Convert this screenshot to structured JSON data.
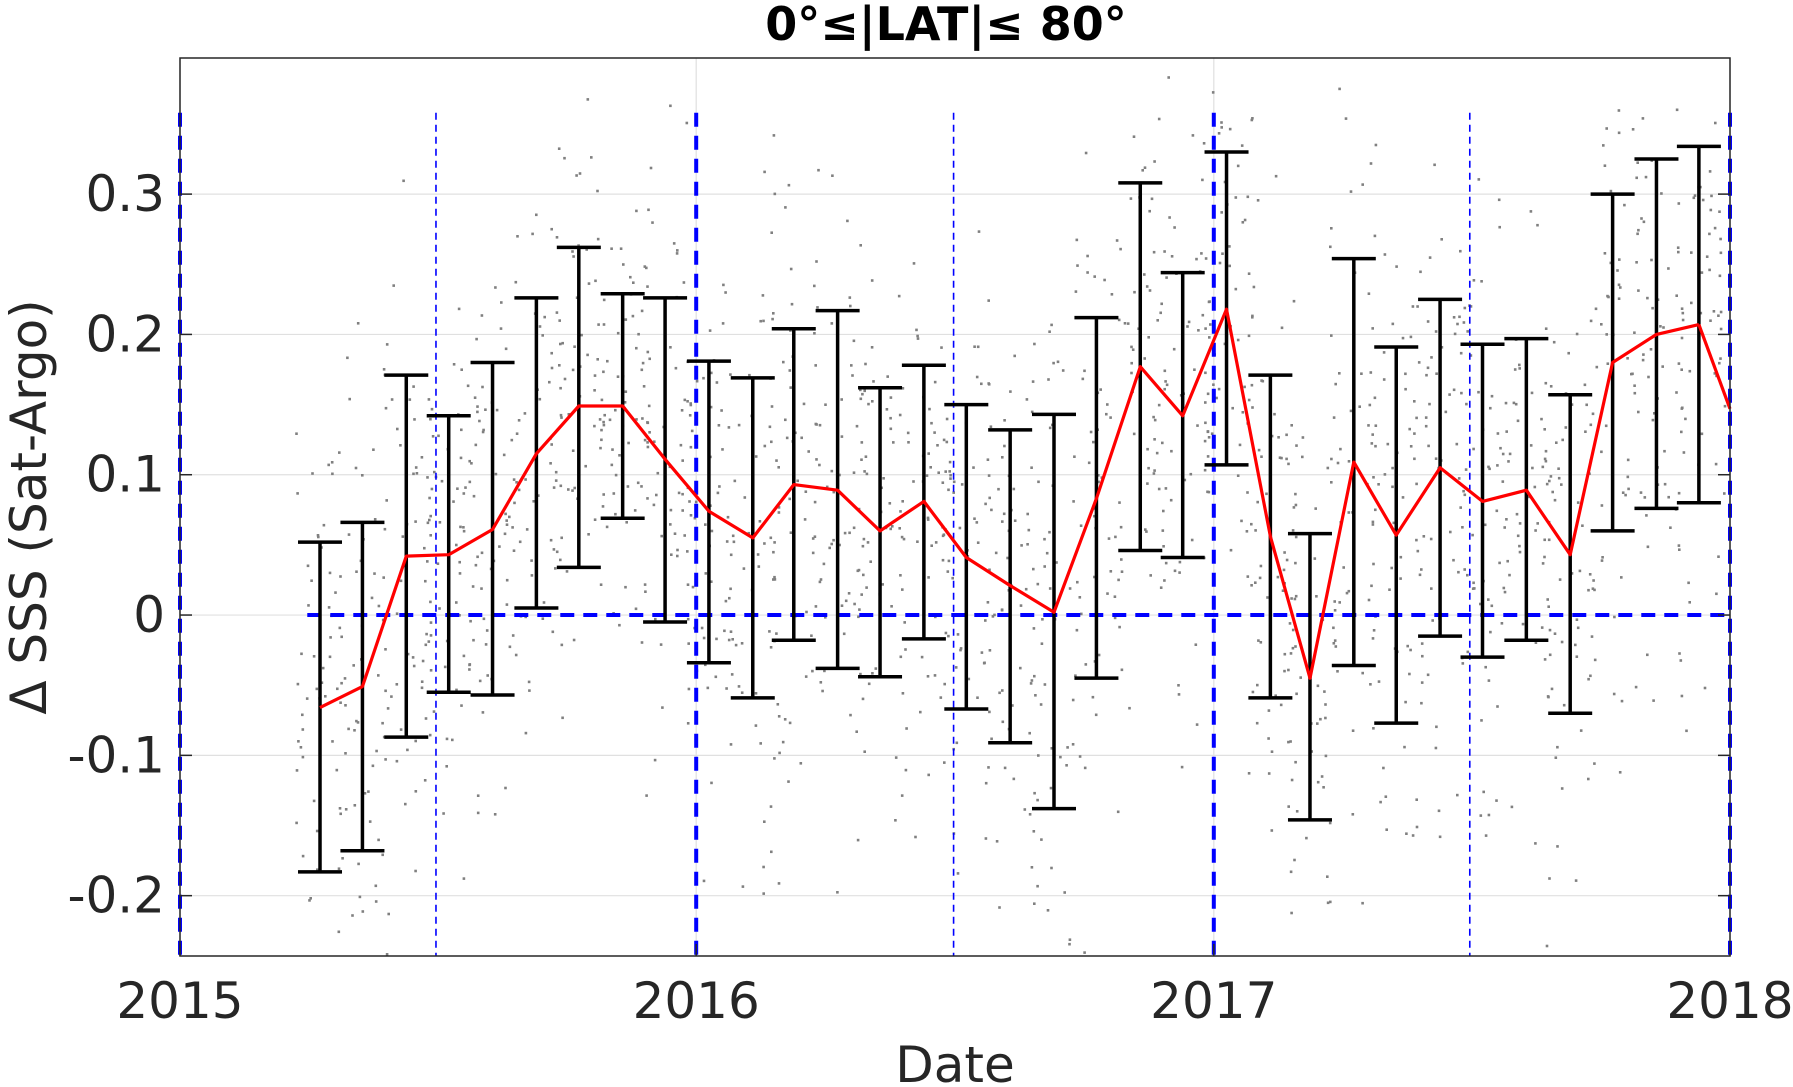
{
  "chart_data": {
    "type": "line",
    "title": "0°≤|LAT|≤ 80°",
    "xlabel": "Date",
    "ylabel": "Δ SSS (Sat-Argo)",
    "xlim": [
      "2015-01-01",
      "2018-01-01"
    ],
    "ylim": [
      -0.243,
      0.397
    ],
    "grid": true,
    "x_ticks": [
      "2015",
      "2016",
      "2017",
      "2018"
    ],
    "y_ticks": [
      -0.2,
      -0.1,
      0,
      0.1,
      0.2,
      0.3
    ],
    "y_tick_labels": [
      "-0.2",
      "-0.1",
      "0",
      "0.1",
      "0.2",
      "0.3"
    ],
    "colors": {
      "mean_line": "#ff0000",
      "error_bars": "#000000",
      "reference_lines": "#0000ff",
      "scatter": "#808080",
      "grid": "#e0e0e0"
    },
    "series": [
      {
        "style": "red line with black error bars (±1 std)",
        "x": [
          "2015-04-10",
          "2015-05-10",
          "2015-06-10",
          "2015-07-10",
          "2015-08-10",
          "2015-09-10",
          "2015-10-10",
          "2015-11-10",
          "2015-12-10",
          "2016-01-10",
          "2016-02-10",
          "2016-03-10",
          "2016-04-10",
          "2016-05-10",
          "2016-06-10",
          "2016-07-10",
          "2016-08-10",
          "2016-09-10",
          "2016-10-10",
          "2016-11-10",
          "2016-12-10",
          "2017-01-10",
          "2017-02-10",
          "2017-03-10",
          "2017-04-10",
          "2017-05-10",
          "2017-06-10",
          "2017-07-10",
          "2017-08-10",
          "2017-09-10",
          "2017-10-10",
          "2017-11-10",
          "2017-12-10"
        ],
        "values": [
          -0.066,
          -0.051,
          0.042,
          0.043,
          0.061,
          0.115,
          0.149,
          0.149,
          0.111,
          0.074,
          0.055,
          0.093,
          0.089,
          0.06,
          0.081,
          0.041,
          0.021,
          0.002,
          0.083,
          0.177,
          0.142,
          0.218,
          0.056,
          -0.045,
          0.109,
          0.057,
          0.105,
          0.081,
          0.089,
          0.043,
          0.18,
          0.2,
          0.207
        ],
        "error_upper": [
          0.052,
          0.066,
          0.171,
          0.142,
          0.18,
          0.226,
          0.262,
          0.229,
          0.226,
          0.181,
          0.169,
          0.204,
          0.217,
          0.162,
          0.178,
          0.15,
          0.132,
          0.143,
          0.212,
          0.308,
          0.244,
          0.33,
          0.171,
          0.058,
          0.254,
          0.191,
          0.225,
          0.193,
          0.197,
          0.157,
          0.3,
          0.325,
          0.334
        ],
        "error_lower": [
          -0.183,
          -0.168,
          -0.087,
          -0.055,
          -0.057,
          0.005,
          0.034,
          0.069,
          -0.005,
          -0.034,
          -0.059,
          -0.018,
          -0.038,
          -0.044,
          -0.017,
          -0.067,
          -0.091,
          -0.138,
          -0.045,
          0.046,
          0.041,
          0.107,
          -0.059,
          -0.146,
          -0.036,
          -0.077,
          -0.015,
          -0.03,
          -0.018,
          -0.07,
          0.06,
          0.076,
          0.08
        ]
      },
      {
        "style": "red line segment (partial month)",
        "x": [
          "2017-12-10",
          "2018-01-01"
        ],
        "values": [
          0.207,
          0.147
        ]
      },
      {
        "style": "blue dashed zero line",
        "x": [
          "2015-04-01",
          "2018-01-01"
        ],
        "values": [
          0,
          0
        ]
      }
    ],
    "vertical_lines": {
      "thick_dashed": [
        "2015-01-01",
        "2016-01-01",
        "2017-01-01",
        "2018-01-01"
      ],
      "thin_dashed": [
        "2015-07-01",
        "2016-07-01",
        "2017-07-01"
      ],
      "y_range": [
        -0.243,
        0.358
      ]
    },
    "scatter": {
      "style": "small gray points, individual matchups",
      "x_range": [
        "2015-04-01",
        "2018-01-01"
      ],
      "y_range": [
        -0.243,
        0.397
      ]
    }
  }
}
